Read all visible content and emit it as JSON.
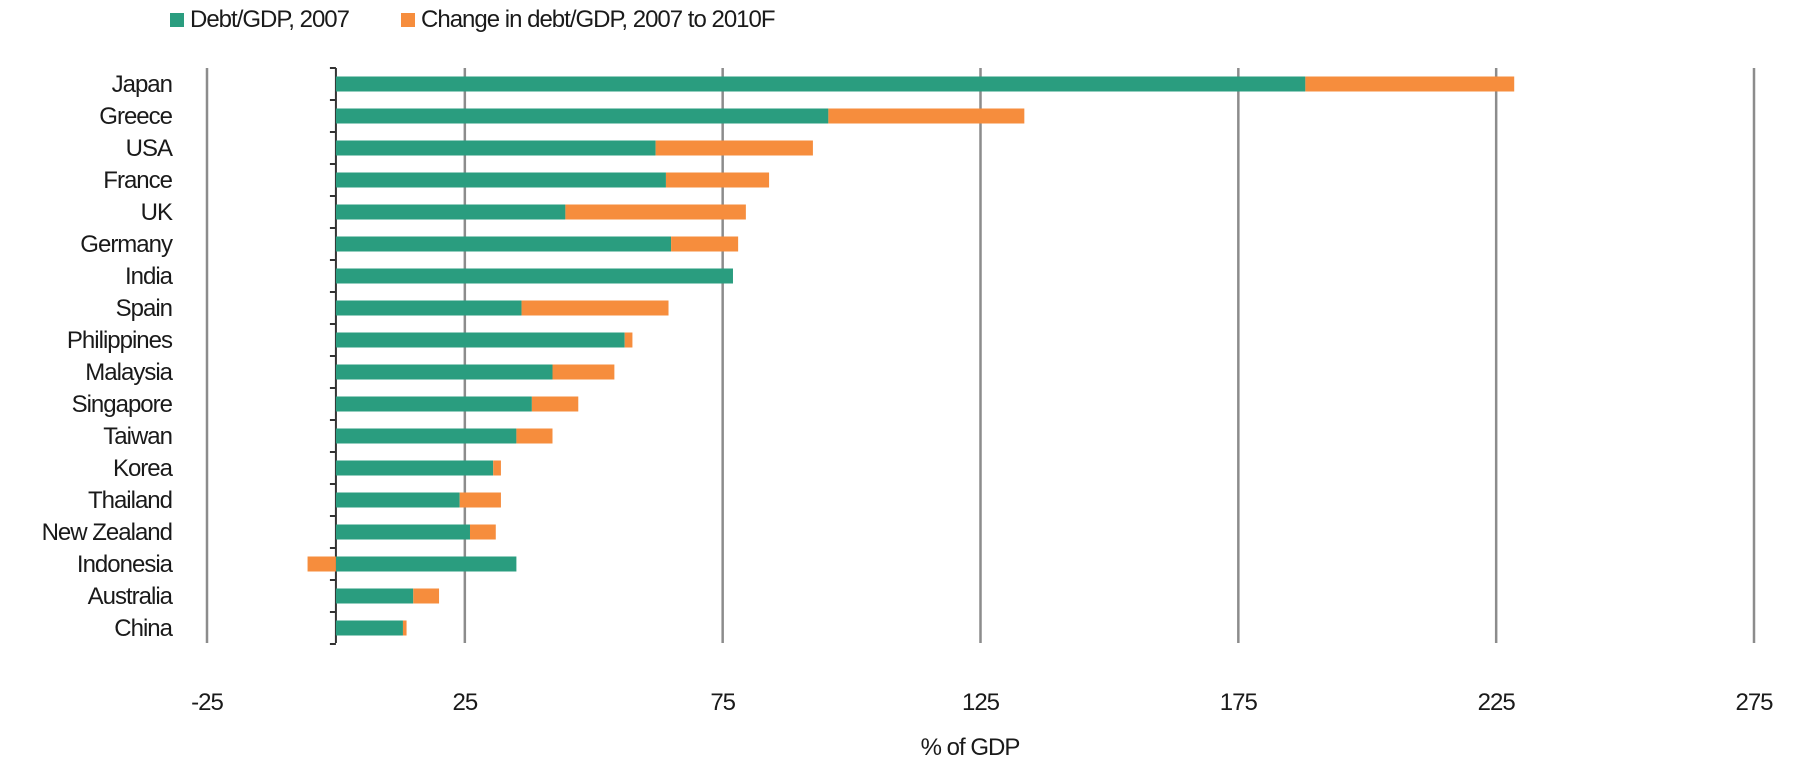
{
  "chart_data": {
    "type": "bar",
    "orientation": "horizontal",
    "stacked": true,
    "categories": [
      "Japan",
      "Greece",
      "USA",
      "France",
      "UK",
      "Germany",
      "India",
      "Spain",
      "Philippines",
      "Malaysia",
      "Singapore",
      "Taiwan",
      "Korea",
      "Thailand",
      "New Zealand",
      "Indonesia",
      "Australia",
      "China"
    ],
    "series": [
      {
        "name": "Debt/GDP, 2007",
        "color": "#2a9d7f",
        "values": [
          188,
          95.5,
          62,
          64,
          44.5,
          65,
          77,
          36,
          56,
          42,
          38,
          35,
          30.5,
          24,
          26,
          35,
          15,
          13
        ]
      },
      {
        "name": "Change in debt/GDP, 2007 to 2010F",
        "color": "#f68d3d",
        "values": [
          40.5,
          38,
          30.5,
          20,
          35,
          13,
          0,
          28.5,
          1.5,
          12,
          9,
          7,
          1.5,
          8,
          5,
          -5.5,
          5,
          0.7
        ]
      }
    ],
    "title": "",
    "xlabel": "% of GDP",
    "ylabel": "",
    "xlim": [
      -25,
      275
    ],
    "xticks": [
      "-25",
      "25",
      "75",
      "125",
      "175",
      "225",
      "275"
    ],
    "grid": true,
    "legend_position": "top-left"
  }
}
